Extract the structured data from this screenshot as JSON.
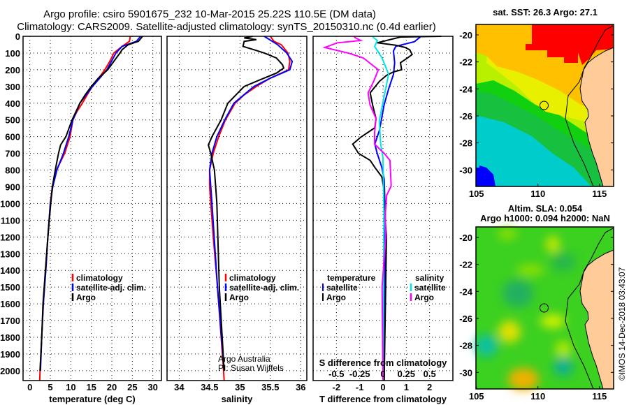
{
  "titles": {
    "line1": "Argo profile: csiro 5901675_232 10-Mar-2015 25.22S 110.5E (DM data)",
    "line2": "Climatology: CARS2009. Satellite-adjusted climatology: synTS_20150310.nc (0.4d earlier)"
  },
  "colors": {
    "climatology": "#ff0000",
    "satellite": "#0000ff",
    "argo": "#000000",
    "sal_satellite": "#00e5e5",
    "sal_argo": "#ff00ff",
    "land": "#ffcc99"
  },
  "chart_data": [
    {
      "type": "line",
      "title": "",
      "xlabel": "temperature (deg C)",
      "ylabel": "",
      "xlim": [
        -1.65,
        32.1
      ],
      "ylim": [
        2059,
        0
      ],
      "xticks": [
        "0",
        "5",
        "10",
        "15",
        "20",
        "25",
        "30"
      ],
      "xtick_values": [
        0,
        5,
        10,
        15,
        20,
        25,
        30
      ],
      "yticks": [
        "0",
        "100",
        "200",
        "300",
        "400",
        "500",
        "600",
        "700",
        "800",
        "900",
        "1000",
        "1100",
        "1200",
        "1300",
        "1400",
        "1500",
        "1600",
        "1700",
        "1800",
        "1900",
        "2000"
      ],
      "ytick_values": [
        0,
        100,
        200,
        300,
        400,
        500,
        600,
        700,
        800,
        900,
        1000,
        1100,
        1200,
        1300,
        1400,
        1500,
        1600,
        1700,
        1800,
        1900,
        2000
      ],
      "grid": true,
      "legend": [
        "climatology",
        "satellite-adj. clim.",
        "Argo"
      ],
      "series": [
        {
          "name": "climatology",
          "color": "#ff0000",
          "depth": [
            0,
            30,
            60,
            100,
            150,
            200,
            250,
            300,
            350,
            400,
            450,
            500,
            600,
            700,
            800,
            900,
            1000,
            1200,
            1400,
            1600,
            1800,
            2000,
            2059
          ],
          "values": [
            24.5,
            24.3,
            22.5,
            20.5,
            19.5,
            18.3,
            16.8,
            15.2,
            14.0,
            12.8,
            11.5,
            10.5,
            9.8,
            8.5,
            6.5,
            5.5,
            5.0,
            4.4,
            3.8,
            3.3,
            2.9,
            2.5,
            2.4
          ]
        },
        {
          "name": "satellite-adj. clim.",
          "color": "#0000ff",
          "depth": [
            0,
            30,
            60,
            100,
            200,
            300,
            400,
            500,
            600,
            700,
            800,
            900,
            1000,
            1200,
            1400,
            1600,
            1800,
            2000
          ],
          "values": [
            27.0,
            26.0,
            22.5,
            21.0,
            18.8,
            15.3,
            12.2,
            10.5,
            9.5,
            8.2,
            6.6,
            5.6,
            5.0,
            4.4,
            3.9,
            3.3,
            2.9,
            2.6
          ]
        },
        {
          "name": "Argo",
          "color": "#000000",
          "depth": [
            0,
            30,
            50,
            80,
            100,
            150,
            200,
            250,
            300,
            350,
            400,
            500,
            600,
            650,
            700,
            800,
            900,
            1000,
            1200,
            1400,
            1600,
            1800,
            2000
          ],
          "values": [
            27.5,
            26.5,
            24.0,
            22.5,
            22.0,
            20.5,
            19.0,
            16.7,
            15.0,
            13.5,
            12.2,
            10.3,
            8.8,
            7.5,
            7.0,
            6.2,
            5.5,
            5.1,
            4.4,
            3.8,
            3.2,
            2.9,
            2.5
          ]
        }
      ]
    },
    {
      "type": "line",
      "xlabel": "salinity",
      "xlim": [
        33.8,
        36.1
      ],
      "ylim": [
        2059,
        0
      ],
      "xticks": [
        "34",
        "34.5",
        "35",
        "35.5",
        "36"
      ],
      "xtick_values": [
        34,
        34.5,
        35,
        35.5,
        36
      ],
      "grid": true,
      "legend": [
        "climatology",
        "satellite-adj. clim.",
        "Argo"
      ],
      "annotations": [
        "Argo Australia",
        "PI: Susan Wijffels"
      ],
      "series": [
        {
          "name": "climatology",
          "color": "#ff0000",
          "depth": [
            0,
            30,
            50,
            100,
            150,
            200,
            250,
            300,
            350,
            400,
            500,
            600,
            700,
            800,
            900,
            1000,
            1200,
            1500,
            2000,
            2059
          ],
          "values": [
            35.5,
            35.56,
            35.68,
            35.79,
            35.82,
            35.8,
            35.5,
            35.27,
            35.07,
            34.92,
            34.76,
            34.65,
            34.56,
            34.5,
            34.5,
            34.52,
            34.56,
            34.63,
            34.73,
            34.74
          ]
        },
        {
          "name": "satellite-adj. clim.",
          "color": "#0000ff",
          "depth": [
            0,
            50,
            100,
            150,
            200,
            250,
            300,
            400,
            500,
            600,
            700,
            800,
            1000,
            1500,
            2000
          ],
          "values": [
            35.4,
            35.62,
            35.77,
            35.86,
            35.82,
            35.5,
            35.23,
            34.9,
            34.75,
            34.62,
            34.54,
            34.5,
            34.54,
            34.63,
            34.74
          ]
        },
        {
          "name": "Argo",
          "color": "#000000",
          "depth": [
            0,
            10,
            20,
            30,
            60,
            80,
            100,
            130,
            170,
            190,
            220,
            260,
            300,
            400,
            500,
            600,
            650,
            700,
            800,
            900,
            1000,
            1500,
            2000
          ],
          "values": [
            35.21,
            35.07,
            35.27,
            35.07,
            35.05,
            35.23,
            35.4,
            35.6,
            35.7,
            35.72,
            35.6,
            35.33,
            35.07,
            34.8,
            34.69,
            34.54,
            34.48,
            34.52,
            34.58,
            34.6,
            34.62,
            34.66,
            34.74
          ]
        }
      ]
    },
    {
      "type": "line",
      "xlabel": "T difference from climatology",
      "xlabel2": "S difference from climatology",
      "xlim": [
        -3.0,
        3.0
      ],
      "xlim_S": [
        -0.75,
        0.75
      ],
      "ylim": [
        2059,
        0
      ],
      "xticks": [
        "-2",
        "-1",
        "0",
        "1",
        "2"
      ],
      "xtick_values": [
        -2,
        -1,
        0,
        1,
        2
      ],
      "xticks_S": [
        "-0.5",
        "-0.25",
        "0",
        "0.25",
        "0.5"
      ],
      "xtick_values_S": [
        -0.5,
        -0.25,
        0,
        0.25,
        0.5
      ],
      "grid": true,
      "legend_temperature": {
        "title": "temperature",
        "items": [
          "satellite",
          "Argo"
        ]
      },
      "legend_salinity": {
        "title": "salinity",
        "items": [
          "satellite",
          "Argo"
        ]
      },
      "series": [
        {
          "name": "T satellite",
          "axis": "T",
          "color": "#0000ff",
          "depth": [
            4,
            32,
            60,
            88,
            158,
            228,
            311,
            408,
            561,
            645,
            700,
            784,
            854,
            1060,
            2059
          ],
          "values": [
            1.6,
            1.35,
            0.55,
            0.45,
            0.5,
            0.45,
            0.25,
            0.05,
            -0.15,
            -0.35,
            -0.25,
            -0.05,
            0.05,
            0.1,
            0.05
          ]
        },
        {
          "name": "T Argo",
          "axis": "T",
          "color": "#000000",
          "depth": [
            0,
            4,
            39,
            53,
            67,
            81,
            109,
            130,
            158,
            200,
            213,
            234,
            269,
            338,
            408,
            492,
            547,
            603,
            645,
            700,
            742,
            784,
            840,
            923,
            1021,
            1200,
            2059
          ],
          "values": [
            2.5,
            0.75,
            -0.25,
            0.55,
            0.95,
            1.15,
            1.25,
            1.05,
            0.75,
            0.8,
            0.45,
            0.15,
            -0.15,
            -0.55,
            -0.45,
            -0.3,
            -0.35,
            -0.95,
            -1.3,
            -1.05,
            -0.55,
            -0.35,
            -0.05,
            0.05,
            0.05,
            0.15,
            0.05
          ]
        },
        {
          "name": "S satellite",
          "axis": "S",
          "color": "#00e5e5",
          "depth": [
            4,
            25,
            60,
            130,
            227,
            366,
            506,
            645,
            728,
            1060,
            2059
          ],
          "values": [
            -0.11,
            -0.06,
            -0.09,
            -0.01,
            0.06,
            0.01,
            -0.04,
            -0.025,
            0.0,
            0.01,
            0.0
          ]
        },
        {
          "name": "S Argo",
          "axis": "S",
          "color": "#ff00ff",
          "depth": [
            4,
            25,
            39,
            67,
            102,
            130,
            200,
            269,
            338,
            408,
            492,
            575,
            645,
            700,
            742,
            895,
            951,
            1060,
            1200,
            1500,
            2059
          ],
          "values": [
            -0.31,
            -0.24,
            -0.49,
            -0.625,
            -0.36,
            -0.21,
            -0.05,
            -0.1,
            -0.16,
            -0.14,
            -0.075,
            -0.09,
            -0.09,
            0.0125,
            0.075,
            0.0875,
            0.04,
            0.025,
            0.03,
            -0.01,
            0.0
          ]
        }
      ]
    }
  ],
  "maps": {
    "sst": {
      "title": "sat. SST: 26.3 Argo: 27.1",
      "argo_position": {
        "lon": 110.5,
        "lat": -25.22
      }
    },
    "sla": {
      "title1": "Altim. SLA: 0.054",
      "title2": "Argo h1000: 0.094 h2000: NaN",
      "argo_position": {
        "lon": 110.5,
        "lat": -25.22
      }
    },
    "lat_ticks": [
      "-20",
      "-22",
      "-24",
      "-26",
      "-28",
      "-30"
    ],
    "lon_ticks": [
      "105",
      "110",
      "115"
    ]
  },
  "credit": "©IMOS 14-Dec-2018 03:43:07"
}
